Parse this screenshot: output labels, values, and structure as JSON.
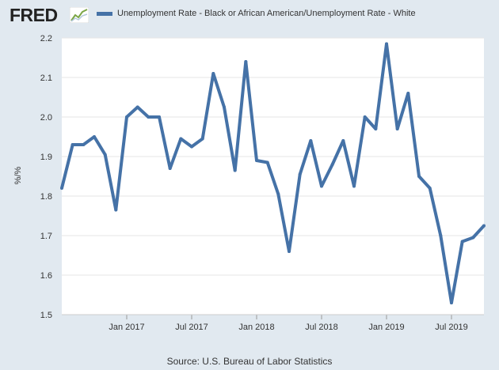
{
  "header": {
    "logo_text": "FRED",
    "legend_label": "Unemployment Rate - Black or African American/Unemployment Rate - White"
  },
  "source": "Source: U.S. Bureau of Labor Statistics",
  "colors": {
    "line": "#4572a7",
    "plot_background": "#ffffff",
    "page_background": "#e1e9f0",
    "grid": "#e6e6e6"
  },
  "chart_data": {
    "type": "line",
    "title": "",
    "xlabel": "",
    "ylabel": "%/%",
    "ylim": [
      1.5,
      2.2
    ],
    "yticks": [
      "1.5",
      "1.6",
      "1.7",
      "1.8",
      "1.9",
      "2.0",
      "2.1",
      "2.2"
    ],
    "xticks": [
      {
        "label": "Jan 2017",
        "date": "2017-01"
      },
      {
        "label": "Jul 2017",
        "date": "2017-07"
      },
      {
        "label": "Jan 2018",
        "date": "2018-01"
      },
      {
        "label": "Jul 2018",
        "date": "2018-07"
      },
      {
        "label": "Jan 2019",
        "date": "2019-01"
      },
      {
        "label": "Jul 2019",
        "date": "2019-07"
      }
    ],
    "x_range": [
      "2016-07",
      "2019-10"
    ],
    "grid": true,
    "series": [
      {
        "name": "Unemployment Rate - Black or African American/Unemployment Rate - White",
        "x": [
          "2016-07",
          "2016-08",
          "2016-09",
          "2016-10",
          "2016-11",
          "2016-12",
          "2017-01",
          "2017-02",
          "2017-03",
          "2017-04",
          "2017-05",
          "2017-06",
          "2017-07",
          "2017-08",
          "2017-09",
          "2017-10",
          "2017-11",
          "2017-12",
          "2018-01",
          "2018-02",
          "2018-03",
          "2018-04",
          "2018-05",
          "2018-06",
          "2018-07",
          "2018-08",
          "2018-09",
          "2018-10",
          "2018-11",
          "2018-12",
          "2019-01",
          "2019-02",
          "2019-03",
          "2019-04",
          "2019-05",
          "2019-06",
          "2019-07",
          "2019-08",
          "2019-09",
          "2019-10"
        ],
        "values": [
          1.82,
          1.93,
          1.93,
          1.95,
          1.905,
          1.765,
          2.0,
          2.025,
          2.0,
          2.0,
          1.87,
          1.945,
          1.925,
          1.945,
          2.11,
          2.025,
          1.865,
          2.14,
          1.89,
          1.885,
          1.805,
          1.66,
          1.855,
          1.94,
          1.825,
          1.88,
          1.94,
          1.825,
          2.0,
          1.97,
          2.185,
          1.97,
          2.06,
          1.85,
          1.82,
          1.7,
          1.53,
          1.685,
          1.695,
          1.725
        ]
      }
    ]
  }
}
